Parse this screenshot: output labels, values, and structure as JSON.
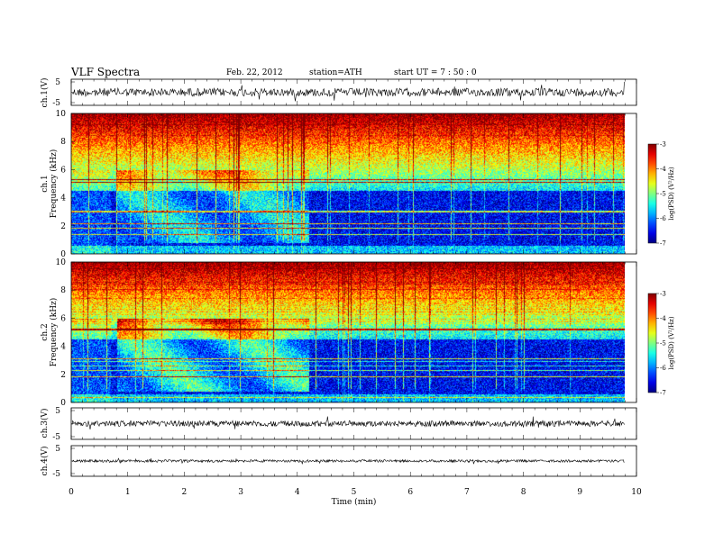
{
  "header": {
    "title": "VLF  Spectra",
    "date": "Feb. 22, 2012",
    "station": "station=ATH",
    "start": "start  UT  =   7 : 50 : 0"
  },
  "chart_data": [
    {
      "type": "line",
      "name": "ch1-waveform",
      "ylabel": "ch.1(V)",
      "ylim": [
        -5,
        5
      ],
      "yticks": [
        "5",
        "-5"
      ],
      "xlim": [
        0,
        10
      ]
    },
    {
      "type": "heatmap",
      "name": "ch1-spectrogram",
      "ylabel_lines": [
        "ch.1",
        "Frequency  (kHz)"
      ],
      "ylim": [
        0,
        10
      ],
      "yticks": [
        "0",
        "2",
        "4",
        "6",
        "8",
        "10"
      ],
      "xlim": [
        0,
        10
      ],
      "colorbar": {
        "label": "log(PSD) (V²/Hz)",
        "range": [
          -7,
          -3
        ],
        "ticks": [
          "-3",
          "-4",
          "-5",
          "-6",
          "-7"
        ]
      }
    },
    {
      "type": "heatmap",
      "name": "ch2-spectrogram",
      "ylabel_lines": [
        "ch.2",
        "Frequency  (kHz)"
      ],
      "ylim": [
        0,
        10
      ],
      "yticks": [
        "0",
        "2",
        "4",
        "6",
        "8",
        "10"
      ],
      "xlim": [
        0,
        10
      ],
      "colorbar": {
        "label": "log(PSD) (V²/Hz)",
        "range": [
          -7,
          -3
        ],
        "ticks": [
          "-3",
          "-4",
          "-5",
          "-6",
          "-7"
        ]
      }
    },
    {
      "type": "line",
      "name": "ch3-waveform",
      "ylabel": "ch.3(V)",
      "ylim": [
        -5,
        5
      ],
      "yticks": [
        "5",
        "-5"
      ],
      "xlim": [
        0,
        10
      ]
    },
    {
      "type": "line",
      "name": "ch4-waveform",
      "ylabel": "ch.4(V)",
      "ylim": [
        -5,
        5
      ],
      "yticks": [
        "5",
        "-5"
      ],
      "xlim": [
        0,
        10
      ]
    }
  ],
  "xaxis": {
    "label": "Time  (min)",
    "ticks": [
      "0",
      "1",
      "2",
      "3",
      "4",
      "5",
      "6",
      "7",
      "8",
      "9",
      "10"
    ],
    "range": [
      0,
      10
    ]
  }
}
